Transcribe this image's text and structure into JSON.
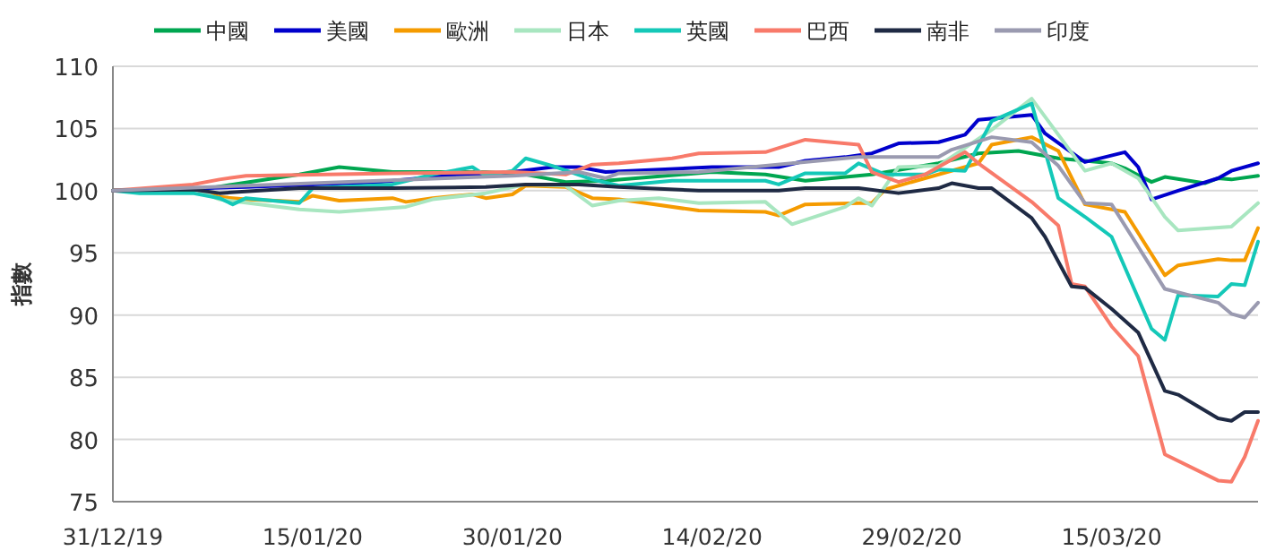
{
  "chart_data": {
    "type": "line",
    "ylabel": "指數",
    "xlim": [
      "2019-12-31",
      "2020-03-26"
    ],
    "ylim": [
      75,
      110
    ],
    "xticks": [
      {
        "value": "2019-12-31",
        "label": "31/12/19"
      },
      {
        "value": "2020-01-15",
        "label": "15/01/20"
      },
      {
        "value": "2020-01-30",
        "label": "30/01/20"
      },
      {
        "value": "2020-02-14",
        "label": "14/02/20"
      },
      {
        "value": "2020-02-29",
        "label": "29/02/20"
      },
      {
        "value": "2020-03-15",
        "label": "15/03/20"
      }
    ],
    "yticks": [
      75,
      80,
      85,
      90,
      95,
      100,
      105,
      110
    ],
    "grid": "y",
    "legend": "top",
    "marker": "none",
    "line_style": "solid",
    "series": [
      {
        "name": "中國",
        "color": "#00a650",
        "x": [
          "2019-12-31",
          "2020-01-06",
          "2020-01-09",
          "2020-01-14",
          "2020-01-17",
          "2020-01-21",
          "2020-01-28",
          "2020-01-31",
          "2020-02-03",
          "2020-02-06",
          "2020-02-14",
          "2020-02-18",
          "2020-02-21",
          "2020-02-26",
          "2020-03-02",
          "2020-03-05",
          "2020-03-08",
          "2020-03-11",
          "2020-03-15",
          "2020-03-16",
          "2020-03-18",
          "2020-03-19",
          "2020-03-22",
          "2020-03-23",
          "2020-03-24",
          "2020-03-26"
        ],
        "values": [
          100,
          100,
          100.5,
          101.3,
          101.9,
          101.5,
          101.5,
          101.3,
          100.7,
          100.8,
          101.5,
          101.3,
          100.8,
          101.3,
          102.2,
          103,
          103.2,
          102.6,
          102.2,
          101.8,
          100.7,
          101.1,
          100.6,
          101,
          100.9,
          101.2
        ]
      },
      {
        "name": "美國",
        "color": "#0000cc",
        "x": [
          "2019-12-31",
          "2020-01-10",
          "2020-01-20",
          "2020-01-25",
          "2020-01-30",
          "2020-02-02",
          "2020-02-04",
          "2020-02-06",
          "2020-02-14",
          "2020-02-19",
          "2020-02-21",
          "2020-02-24",
          "2020-02-26",
          "2020-02-28",
          "2020-03-02",
          "2020-03-04",
          "2020-03-05",
          "2020-03-09",
          "2020-03-10",
          "2020-03-13",
          "2020-03-16",
          "2020-03-17",
          "2020-03-18",
          "2020-03-20",
          "2020-03-23",
          "2020-03-24",
          "2020-03-26"
        ],
        "values": [
          100,
          100.3,
          100.7,
          101.2,
          101.5,
          101.9,
          101.9,
          101.5,
          101.9,
          101.9,
          102.4,
          102.7,
          103,
          103.8,
          103.9,
          104.5,
          105.7,
          106.1,
          104.6,
          102.3,
          103.1,
          101.9,
          99.3,
          100,
          101,
          101.6,
          102.2
        ]
      },
      {
        "name": "歐洲",
        "color": "#f59b00",
        "x": [
          "2019-12-31",
          "2020-01-06",
          "2020-01-08",
          "2020-01-10",
          "2020-01-14",
          "2020-01-15",
          "2020-01-17",
          "2020-01-21",
          "2020-01-22",
          "2020-01-24",
          "2020-01-27",
          "2020-01-28",
          "2020-01-30",
          "2020-01-31",
          "2020-02-03",
          "2020-02-05",
          "2020-02-07",
          "2020-02-13",
          "2020-02-18",
          "2020-02-19",
          "2020-02-21",
          "2020-02-25",
          "2020-02-26",
          "2020-02-27",
          "2020-03-02",
          "2020-03-05",
          "2020-03-06",
          "2020-03-09",
          "2020-03-11",
          "2020-03-13",
          "2020-03-16",
          "2020-03-19",
          "2020-03-20",
          "2020-03-23",
          "2020-03-24",
          "2020-03-25",
          "2020-03-26"
        ],
        "values": [
          100,
          100.2,
          99.5,
          99.3,
          99.1,
          99.6,
          99.2,
          99.4,
          99.1,
          99.4,
          99.7,
          99.4,
          99.7,
          100.4,
          100.3,
          99.4,
          99.3,
          98.4,
          98.3,
          98,
          98.9,
          99,
          99,
          100.1,
          101.3,
          102.2,
          103.7,
          104.3,
          103.2,
          98.9,
          98.3,
          93.2,
          94,
          94.5,
          94.4,
          94.4,
          97
        ]
      },
      {
        "name": "日本",
        "color": "#a8e6c0",
        "x": [
          "2019-12-31",
          "2020-01-06",
          "2020-01-08",
          "2020-01-14",
          "2020-01-17",
          "2020-01-22",
          "2020-01-24",
          "2020-01-28",
          "2020-01-31",
          "2020-02-03",
          "2020-02-05",
          "2020-02-07",
          "2020-02-10",
          "2020-02-13",
          "2020-02-18",
          "2020-02-20",
          "2020-02-24",
          "2020-02-25",
          "2020-02-26",
          "2020-02-28",
          "2020-03-02",
          "2020-03-06",
          "2020-03-09",
          "2020-03-13",
          "2020-03-15",
          "2020-03-17",
          "2020-03-19",
          "2020-03-20",
          "2020-03-24",
          "2020-03-26"
        ],
        "values": [
          100,
          100.2,
          99.3,
          98.5,
          98.3,
          98.7,
          99.3,
          99.8,
          100.5,
          100.4,
          98.8,
          99.2,
          99.4,
          99,
          99.1,
          97.3,
          98.7,
          99.4,
          98.8,
          101.9,
          102,
          104.9,
          107.4,
          101.6,
          102.2,
          101,
          97.9,
          96.8,
          97.1,
          99
        ]
      },
      {
        "name": "英國",
        "color": "#14c8b8",
        "x": [
          "2019-12-31",
          "2020-01-02",
          "2020-01-06",
          "2020-01-08",
          "2020-01-09",
          "2020-01-10",
          "2020-01-14",
          "2020-01-15",
          "2020-01-21",
          "2020-01-24",
          "2020-01-27",
          "2020-01-28",
          "2020-01-30",
          "2020-01-31",
          "2020-02-02",
          "2020-02-05",
          "2020-02-07",
          "2020-02-11",
          "2020-02-18",
          "2020-02-19",
          "2020-02-21",
          "2020-02-24",
          "2020-02-25",
          "2020-02-27",
          "2020-03-01",
          "2020-03-02",
          "2020-03-04",
          "2020-03-06",
          "2020-03-09",
          "2020-03-11",
          "2020-03-13",
          "2020-03-15",
          "2020-03-18",
          "2020-03-19",
          "2020-03-20",
          "2020-03-23",
          "2020-03-24",
          "2020-03-25",
          "2020-03-26"
        ],
        "values": [
          100,
          99.8,
          99.8,
          99.4,
          98.9,
          99.4,
          99,
          100.2,
          100.5,
          101.3,
          101.9,
          101.2,
          101.6,
          102.6,
          102,
          100.9,
          100.4,
          100.8,
          100.8,
          100.5,
          101.4,
          101.4,
          102.2,
          101.3,
          101.3,
          101.7,
          101.6,
          105.6,
          107,
          99.4,
          97.9,
          96.3,
          88.9,
          88,
          91.6,
          91.5,
          92.5,
          92.4,
          95.9
        ]
      },
      {
        "name": "巴西",
        "color": "#f87a6a",
        "x": [
          "2019-12-31",
          "2020-01-06",
          "2020-01-08",
          "2020-01-10",
          "2020-01-21",
          "2020-01-30",
          "2020-02-03",
          "2020-02-05",
          "2020-02-07",
          "2020-02-11",
          "2020-02-13",
          "2020-02-18",
          "2020-02-21",
          "2020-02-25",
          "2020-02-26",
          "2020-02-28",
          "2020-03-01",
          "2020-03-04",
          "2020-03-05",
          "2020-03-09",
          "2020-03-11",
          "2020-03-12",
          "2020-03-13",
          "2020-03-15",
          "2020-03-17",
          "2020-03-19",
          "2020-03-23",
          "2020-03-24",
          "2020-03-25",
          "2020-03-26"
        ],
        "values": [
          100,
          100.5,
          100.9,
          101.2,
          101.4,
          101.5,
          101.3,
          102.1,
          102.2,
          102.6,
          103,
          103.1,
          104.1,
          103.7,
          101.5,
          100.7,
          101.3,
          103.1,
          102.2,
          99.1,
          97.2,
          92.5,
          92.3,
          89.1,
          86.7,
          78.8,
          76.7,
          76.6,
          78.6,
          81.5
        ]
      },
      {
        "name": "南非",
        "color": "#1f2a44",
        "x": [
          "2019-12-31",
          "2020-01-06",
          "2020-01-08",
          "2020-01-14",
          "2020-01-21",
          "2020-01-28",
          "2020-01-31",
          "2020-02-04",
          "2020-02-07",
          "2020-02-13",
          "2020-02-19",
          "2020-02-21",
          "2020-02-25",
          "2020-02-28",
          "2020-03-02",
          "2020-03-03",
          "2020-03-05",
          "2020-03-06",
          "2020-03-09",
          "2020-03-10",
          "2020-03-12",
          "2020-03-13",
          "2020-03-15",
          "2020-03-17",
          "2020-03-19",
          "2020-03-20",
          "2020-03-23",
          "2020-03-24",
          "2020-03-25",
          "2020-03-26"
        ],
        "values": [
          100,
          100.1,
          99.8,
          100.2,
          100.2,
          100.3,
          100.5,
          100.5,
          100.3,
          100,
          100,
          100.2,
          100.2,
          99.8,
          100.2,
          100.6,
          100.2,
          100.2,
          97.8,
          96.3,
          92.3,
          92.2,
          90.5,
          88.6,
          83.9,
          83.6,
          81.7,
          81.5,
          82.2,
          82.2
        ]
      },
      {
        "name": "印度",
        "color": "#9a9ab0",
        "x": [
          "2019-12-31",
          "2020-01-10",
          "2020-01-20",
          "2020-01-30",
          "2020-02-04",
          "2020-02-06",
          "2020-02-07",
          "2020-02-13",
          "2020-02-20",
          "2020-02-25",
          "2020-03-02",
          "2020-03-03",
          "2020-03-06",
          "2020-03-09",
          "2020-03-11",
          "2020-03-13",
          "2020-03-15",
          "2020-03-19",
          "2020-03-23",
          "2020-03-24",
          "2020-03-25",
          "2020-03-26"
        ],
        "values": [
          100,
          100.4,
          100.8,
          101.2,
          101.5,
          101,
          101.4,
          101.5,
          102.2,
          102.7,
          102.7,
          103.3,
          104.3,
          103.9,
          102,
          99,
          98.9,
          92.1,
          91,
          90.1,
          89.8,
          91
        ]
      }
    ]
  }
}
